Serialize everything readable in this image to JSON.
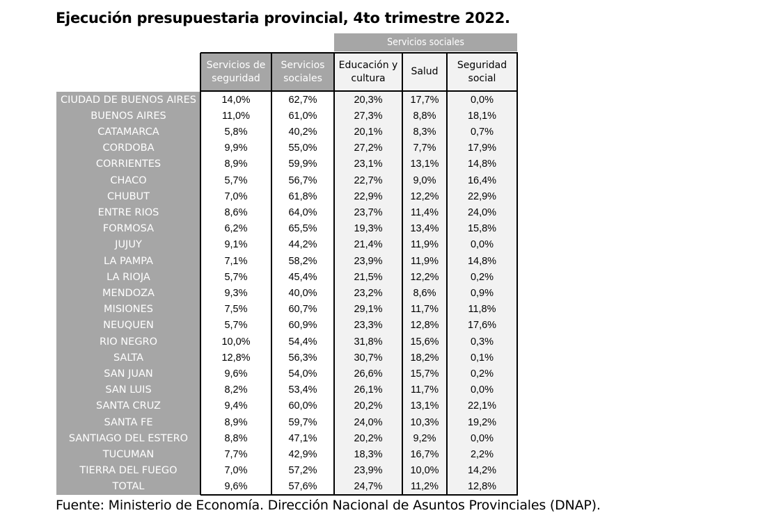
{
  "title": "Ejecución presupuestaria provincial, 4to trimestre 2022.",
  "source": "Fuente: Ministerio de Economía. Dirección Nacional de Asuntos Provinciales (DNAP).",
  "group_header": "Servicios sociales",
  "chart_data": {
    "type": "table",
    "columns": [
      "Servicios de seguridad",
      "Servicios sociales",
      "Educación y cultura",
      "Salud",
      "Seguridad social"
    ],
    "column_header_lines": [
      [
        "Servicios de",
        "seguridad"
      ],
      [
        "Servicios",
        "sociales"
      ],
      [
        "Educación y",
        "cultura"
      ],
      [
        "Salud"
      ],
      [
        "Seguridad",
        "social"
      ]
    ],
    "rows": [
      {
        "label": "CIUDAD DE BUENOS AIRES",
        "values": [
          "14,0%",
          "62,7%",
          "20,3%",
          "17,7%",
          "0,0%"
        ]
      },
      {
        "label": "BUENOS AIRES",
        "values": [
          "11,0%",
          "61,0%",
          "27,3%",
          "8,8%",
          "18,1%"
        ]
      },
      {
        "label": "CATAMARCA",
        "values": [
          "5,8%",
          "40,2%",
          "20,1%",
          "8,3%",
          "0,7%"
        ]
      },
      {
        "label": "CORDOBA",
        "values": [
          "9,9%",
          "55,0%",
          "27,2%",
          "7,7%",
          "17,9%"
        ]
      },
      {
        "label": "CORRIENTES",
        "values": [
          "8,9%",
          "59,9%",
          "23,1%",
          "13,1%",
          "14,8%"
        ]
      },
      {
        "label": "CHACO",
        "values": [
          "5,7%",
          "56,7%",
          "22,7%",
          "9,0%",
          "16,4%"
        ]
      },
      {
        "label": "CHUBUT",
        "values": [
          "7,0%",
          "61,8%",
          "22,9%",
          "12,2%",
          "22,9%"
        ]
      },
      {
        "label": "ENTRE RIOS",
        "values": [
          "8,6%",
          "64,0%",
          "23,7%",
          "11,4%",
          "24,0%"
        ]
      },
      {
        "label": "FORMOSA",
        "values": [
          "6,2%",
          "65,5%",
          "19,3%",
          "13,4%",
          "15,8%"
        ]
      },
      {
        "label": "JUJUY",
        "values": [
          "9,1%",
          "44,2%",
          "21,4%",
          "11,9%",
          "0,0%"
        ]
      },
      {
        "label": "LA PAMPA",
        "values": [
          "7,1%",
          "58,2%",
          "23,9%",
          "11,9%",
          "14,8%"
        ]
      },
      {
        "label": "LA RIOJA",
        "values": [
          "5,7%",
          "45,4%",
          "21,5%",
          "12,2%",
          "0,2%"
        ]
      },
      {
        "label": "MENDOZA",
        "values": [
          "9,3%",
          "40,0%",
          "23,2%",
          "8,6%",
          "0,9%"
        ]
      },
      {
        "label": "MISIONES",
        "values": [
          "7,5%",
          "60,7%",
          "29,1%",
          "11,7%",
          "11,8%"
        ]
      },
      {
        "label": "NEUQUEN",
        "values": [
          "5,7%",
          "60,9%",
          "23,3%",
          "12,8%",
          "17,6%"
        ]
      },
      {
        "label": "RIO NEGRO",
        "values": [
          "10,0%",
          "54,4%",
          "31,8%",
          "15,6%",
          "0,3%"
        ]
      },
      {
        "label": "SALTA",
        "values": [
          "12,8%",
          "56,3%",
          "30,7%",
          "18,2%",
          "0,1%"
        ]
      },
      {
        "label": "SAN JUAN",
        "values": [
          "9,6%",
          "54,0%",
          "26,6%",
          "15,7%",
          "0,2%"
        ]
      },
      {
        "label": "SAN LUIS",
        "values": [
          "8,2%",
          "53,4%",
          "26,1%",
          "11,7%",
          "0,0%"
        ]
      },
      {
        "label": "SANTA CRUZ",
        "values": [
          "9,4%",
          "60,0%",
          "20,2%",
          "13,1%",
          "22,1%"
        ]
      },
      {
        "label": "SANTA FE",
        "values": [
          "8,9%",
          "59,7%",
          "24,0%",
          "10,3%",
          "19,2%"
        ]
      },
      {
        "label": "SANTIAGO DEL ESTERO",
        "values": [
          "8,8%",
          "47,1%",
          "20,2%",
          "9,2%",
          "0,0%"
        ]
      },
      {
        "label": "TUCUMAN",
        "values": [
          "7,7%",
          "42,9%",
          "18,3%",
          "16,7%",
          "2,2%"
        ]
      },
      {
        "label": "TIERRA DEL FUEGO",
        "values": [
          "7,0%",
          "57,2%",
          "23,9%",
          "10,0%",
          "14,2%"
        ]
      },
      {
        "label": "TOTAL",
        "values": [
          "9,6%",
          "57,6%",
          "24,7%",
          "11,2%",
          "12,8%"
        ]
      }
    ]
  },
  "colors": {
    "header_dark": "#a6a6a6",
    "header_light": "#f2f2f2",
    "row_label_bg": "#a6a6a6",
    "social_columns_bg": "#f2f2f2",
    "border": "#000000"
  }
}
